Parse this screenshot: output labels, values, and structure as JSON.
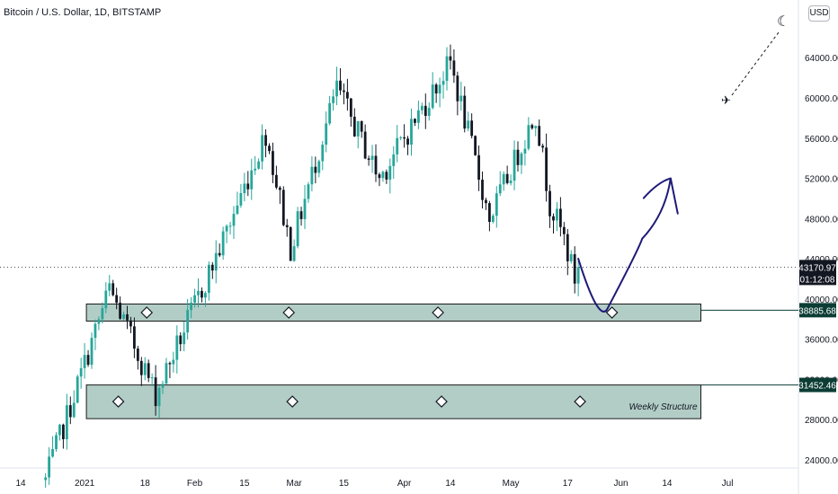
{
  "header": {
    "title": "Bitcoin / U.S. Dollar, 1D, BITSTAMP",
    "currency_badge": "USD",
    "theme_icon": "moon-icon"
  },
  "colors": {
    "up": "#26a69a",
    "down": "#131722",
    "zone_fill": "#b2cdc6",
    "zone_stroke": "#1b1b1b",
    "current_price_bg": "#131722",
    "level_price_bg": "#0c3d35",
    "drawing": "#1e1a78"
  },
  "chart_data": {
    "type": "candlestick",
    "symbol": "Bitcoin / U.S. Dollar",
    "interval": "1D",
    "exchange": "BITSTAMP",
    "currency": "USD",
    "x_ticks": [
      "14",
      "2021",
      "18",
      "Feb",
      "15",
      "Mar",
      "15",
      "Apr",
      "14",
      "May",
      "17",
      "Jun",
      "14",
      "Jul"
    ],
    "y_ticks": [
      64000,
      60000,
      56000,
      52000,
      48000,
      44000,
      40000,
      36000,
      32000,
      28000,
      24000
    ],
    "y_tick_labels": [
      "64000.00",
      "60000.00",
      "56000.00",
      "52000.00",
      "48000.00",
      "44000.00",
      "40000.00",
      "36000.00",
      "32000.00",
      "28000.00",
      "24000.00"
    ],
    "ylim": [
      21500,
      67500
    ],
    "current_price": {
      "value": 43170.97,
      "label": "43170.97",
      "countdown": "01:12:08"
    },
    "levels": [
      {
        "label": "38885.68",
        "value": 38885.68
      },
      {
        "label": "31452.46",
        "value": 31452.46
      }
    ],
    "zones": [
      {
        "name": "upper",
        "from": 37800,
        "to": 39500,
        "label": ""
      },
      {
        "name": "lower",
        "from": 28100,
        "to": 31450,
        "label": "Weekly Structure"
      }
    ],
    "anchors": [
      {
        "x": "2020-12-21",
        "y": 22000
      },
      {
        "x": "2021-01-08",
        "y": 41000
      },
      {
        "x": "2021-01-21",
        "y": 30500
      },
      {
        "x": "2021-02-08",
        "y": 45000
      },
      {
        "x": "2021-02-21",
        "y": 56500
      },
      {
        "x": "2021-02-28",
        "y": 45000
      },
      {
        "x": "2021-03-13",
        "y": 61000
      },
      {
        "x": "2021-03-25",
        "y": 52000
      },
      {
        "x": "2021-04-14",
        "y": 63500
      },
      {
        "x": "2021-04-25",
        "y": 48000
      },
      {
        "x": "2021-05-08",
        "y": 58500
      },
      {
        "x": "2021-05-12",
        "y": 49500
      },
      {
        "x": "2021-05-16",
        "y": 46000
      },
      {
        "x": "2021-05-19",
        "y": 42000
      },
      {
        "x": "2021-05-20",
        "y": 43171
      }
    ],
    "projection": [
      {
        "x": "2021-05-20",
        "y": 44000
      },
      {
        "x": "2021-05-28",
        "y": 38900
      },
      {
        "x": "2021-06-07",
        "y": 46000
      },
      {
        "x": "2021-06-15",
        "y": 52000
      },
      {
        "x": "2021-06-17",
        "y": 48500
      }
    ]
  }
}
